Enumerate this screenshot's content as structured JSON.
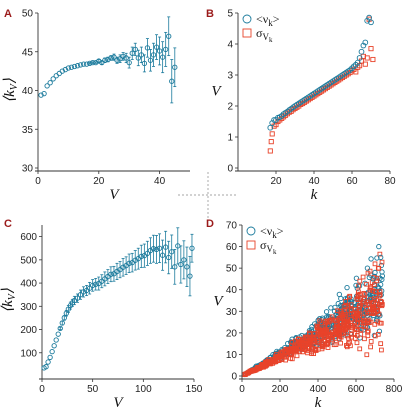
{
  "colors": {
    "blue": "#1a7a9c",
    "red": "#e8432a",
    "letter": "#9b1b1b",
    "grid_cross": "#888888"
  },
  "chart_data": [
    {
      "panel": "A",
      "type": "scatter",
      "error_bars": true,
      "xlabel": "V",
      "ylabel": "⟨k_V⟩",
      "xlim": [
        0,
        50
      ],
      "ylim": [
        30,
        50
      ],
      "xticks": [
        0,
        20,
        40
      ],
      "yticks": [
        30,
        35,
        40,
        45,
        50
      ],
      "series": [
        {
          "color": "blue",
          "marker": "circle",
          "points": [
            [
              1,
              39.4,
              0
            ],
            [
              2,
              39.6,
              0
            ],
            [
              3,
              40.6,
              0
            ],
            [
              4,
              41.0,
              0
            ],
            [
              5,
              41.5,
              0
            ],
            [
              6,
              41.9,
              0
            ],
            [
              7,
              42.2,
              0
            ],
            [
              8,
              42.5,
              0
            ],
            [
              9,
              42.7,
              0
            ],
            [
              10,
              42.9,
              0
            ],
            [
              11,
              43.0,
              0
            ],
            [
              12,
              43.1,
              0
            ],
            [
              13,
              43.2,
              0
            ],
            [
              14,
              43.3,
              0
            ],
            [
              15,
              43.4,
              0
            ],
            [
              16,
              43.4,
              0
            ],
            [
              17,
              43.5,
              0.1
            ],
            [
              18,
              43.6,
              0.1
            ],
            [
              19,
              43.6,
              0.1
            ],
            [
              20,
              43.8,
              0.2
            ],
            [
              21,
              43.6,
              0.2
            ],
            [
              22,
              43.9,
              0.3
            ],
            [
              23,
              44.0,
              0.3
            ],
            [
              24,
              44.2,
              0.3
            ],
            [
              25,
              44.3,
              0.4
            ],
            [
              26,
              43.9,
              0.4
            ],
            [
              27,
              44.1,
              0.5
            ],
            [
              28,
              44.4,
              0.5
            ],
            [
              29,
              44.2,
              0.6
            ],
            [
              30,
              43.6,
              0.7
            ],
            [
              31,
              44.8,
              0.8
            ],
            [
              32,
              45.3,
              0.8
            ],
            [
              33,
              44.2,
              1.0
            ],
            [
              34,
              44.6,
              1.0
            ],
            [
              35,
              43.5,
              1.1
            ],
            [
              36,
              45.5,
              1.2
            ],
            [
              37,
              43.9,
              1.4
            ],
            [
              38,
              44.6,
              1.5
            ],
            [
              39,
              45.6,
              1.6
            ],
            [
              40,
              45.1,
              1.8
            ],
            [
              41,
              44.3,
              2.0
            ],
            [
              42,
              45.3,
              2.2
            ],
            [
              43,
              47.0,
              2.5
            ],
            [
              44,
              41.2,
              2.8
            ],
            [
              45,
              43.0,
              2.5
            ]
          ]
        }
      ]
    },
    {
      "panel": "B",
      "type": "scatter",
      "xlabel": "k",
      "ylabel": "V",
      "xlim": [
        0,
        80
      ],
      "ylim": [
        0,
        5
      ],
      "xticks": [
        20,
        40,
        60,
        80
      ],
      "yticks": [
        0,
        1,
        2,
        3,
        4,
        5
      ],
      "legend": {
        "position": "top-left",
        "entries": [
          {
            "label": "<ν_k>",
            "color": "blue",
            "marker": "circle"
          },
          {
            "label": "σ_{V_k}",
            "color": "red",
            "marker": "square"
          }
        ]
      },
      "series": [
        {
          "label": "<ν_k>",
          "color": "blue",
          "marker": "circle",
          "points": [
            [
              17,
              1.3
            ],
            [
              18,
              1.45
            ],
            [
              19,
              1.55
            ],
            [
              20,
              1.55
            ],
            [
              21,
              1.62
            ],
            [
              22,
              1.64
            ],
            [
              23,
              1.68
            ],
            [
              24,
              1.74
            ],
            [
              25,
              1.78
            ],
            [
              26,
              1.82
            ],
            [
              27,
              1.87
            ],
            [
              28,
              1.91
            ],
            [
              29,
              1.96
            ],
            [
              30,
              2.0
            ],
            [
              31,
              2.04
            ],
            [
              32,
              2.08
            ],
            [
              33,
              2.12
            ],
            [
              34,
              2.16
            ],
            [
              35,
              2.2
            ],
            [
              36,
              2.24
            ],
            [
              37,
              2.28
            ],
            [
              38,
              2.32
            ],
            [
              39,
              2.36
            ],
            [
              40,
              2.4
            ],
            [
              41,
              2.44
            ],
            [
              42,
              2.48
            ],
            [
              43,
              2.52
            ],
            [
              44,
              2.56
            ],
            [
              45,
              2.6
            ],
            [
              46,
              2.64
            ],
            [
              47,
              2.68
            ],
            [
              48,
              2.72
            ],
            [
              49,
              2.76
            ],
            [
              50,
              2.8
            ],
            [
              51,
              2.84
            ],
            [
              52,
              2.88
            ],
            [
              53,
              2.92
            ],
            [
              54,
              2.96
            ],
            [
              55,
              3.0
            ],
            [
              56,
              3.04
            ],
            [
              57,
              3.08
            ],
            [
              58,
              3.12
            ],
            [
              59,
              3.16
            ],
            [
              60,
              3.22
            ],
            [
              61,
              3.28
            ],
            [
              62,
              3.33
            ],
            [
              63,
              3.4
            ],
            [
              64,
              3.55
            ],
            [
              65,
              3.75
            ],
            [
              66,
              3.95
            ],
            [
              67,
              4.05
            ],
            [
              68,
              4.75
            ],
            [
              69,
              4.85
            ],
            [
              70,
              4.7
            ]
          ]
        },
        {
          "label": "σ_{V_k}",
          "color": "red",
          "marker": "square",
          "points": [
            [
              17,
              0.55
            ],
            [
              17.5,
              0.85
            ],
            [
              18,
              1.1
            ],
            [
              19,
              1.35
            ],
            [
              20,
              1.4
            ],
            [
              21,
              1.5
            ],
            [
              22,
              1.55
            ],
            [
              23,
              1.6
            ],
            [
              24,
              1.65
            ],
            [
              25,
              1.7
            ],
            [
              26,
              1.75
            ],
            [
              27,
              1.8
            ],
            [
              28,
              1.83
            ],
            [
              29,
              1.88
            ],
            [
              30,
              1.92
            ],
            [
              31,
              1.96
            ],
            [
              32,
              2.0
            ],
            [
              33,
              2.05
            ],
            [
              34,
              2.08
            ],
            [
              35,
              2.12
            ],
            [
              36,
              2.16
            ],
            [
              37,
              2.2
            ],
            [
              38,
              2.24
            ],
            [
              39,
              2.28
            ],
            [
              40,
              2.32
            ],
            [
              41,
              2.36
            ],
            [
              42,
              2.4
            ],
            [
              43,
              2.44
            ],
            [
              44,
              2.48
            ],
            [
              45,
              2.52
            ],
            [
              46,
              2.56
            ],
            [
              47,
              2.6
            ],
            [
              48,
              2.64
            ],
            [
              49,
              2.68
            ],
            [
              50,
              2.72
            ],
            [
              51,
              2.76
            ],
            [
              52,
              2.8
            ],
            [
              53,
              2.84
            ],
            [
              54,
              2.88
            ],
            [
              55,
              2.92
            ],
            [
              56,
              2.96
            ],
            [
              57,
              3.0
            ],
            [
              58,
              3.04
            ],
            [
              59,
              3.08
            ],
            [
              60,
              3.14
            ],
            [
              61,
              3.18
            ],
            [
              62,
              3.1
            ],
            [
              63,
              3.25
            ],
            [
              64,
              3.3
            ],
            [
              65,
              3.45
            ],
            [
              66,
              3.6
            ],
            [
              67,
              3.35
            ],
            [
              68,
              3.55
            ],
            [
              69,
              4.8
            ],
            [
              70,
              3.85
            ],
            [
              71,
              3.5
            ]
          ]
        }
      ]
    },
    {
      "panel": "C",
      "type": "scatter",
      "error_bars": true,
      "xlabel": "V",
      "ylabel": "⟨k_V⟩",
      "xlim": [
        0,
        150
      ],
      "ylim": [
        0,
        650
      ],
      "xticks": [
        0,
        50,
        100,
        150
      ],
      "yticks": [
        100,
        200,
        300,
        400,
        500,
        600
      ],
      "series": [
        {
          "color": "blue",
          "marker": "circle",
          "points": [
            [
              2,
              35,
              0
            ],
            [
              4,
              40,
              0
            ],
            [
              6,
              60,
              0
            ],
            [
              8,
              80,
              0
            ],
            [
              10,
              105,
              0
            ],
            [
              12,
              130,
              0
            ],
            [
              14,
              155,
              0
            ],
            [
              16,
              180,
              0
            ],
            [
              18,
              205,
              5
            ],
            [
              20,
              228,
              8
            ],
            [
              22,
              250,
              10
            ],
            [
              24,
              270,
              12
            ],
            [
              26,
              288,
              15
            ],
            [
              28,
              303,
              15
            ],
            [
              30,
              315,
              15
            ],
            [
              32,
              325,
              18
            ],
            [
              35,
              335,
              18
            ],
            [
              38,
              350,
              20
            ],
            [
              41,
              362,
              22
            ],
            [
              44,
              368,
              22
            ],
            [
              47,
              378,
              25
            ],
            [
              50,
              390,
              25
            ],
            [
              53,
              395,
              25
            ],
            [
              56,
              398,
              28
            ],
            [
              59,
              408,
              28
            ],
            [
              62,
              418,
              30
            ],
            [
              65,
              428,
              30
            ],
            [
              68,
              438,
              32
            ],
            [
              71,
              440,
              32
            ],
            [
              74,
              450,
              35
            ],
            [
              77,
              458,
              35
            ],
            [
              80,
              468,
              38
            ],
            [
              83,
              475,
              38
            ],
            [
              86,
              485,
              40
            ],
            [
              89,
              488,
              40
            ],
            [
              92,
              498,
              42
            ],
            [
              95,
              505,
              45
            ],
            [
              98,
              515,
              48
            ],
            [
              101,
              518,
              50
            ],
            [
              104,
              528,
              52
            ],
            [
              107,
              540,
              55
            ],
            [
              110,
              548,
              58
            ],
            [
              113,
              545,
              60
            ],
            [
              116,
              550,
              62
            ],
            [
              119,
              520,
              65
            ],
            [
              122,
              555,
              68
            ],
            [
              125,
              510,
              70
            ],
            [
              128,
              535,
              72
            ],
            [
              131,
              470,
              75
            ],
            [
              134,
              560,
              78
            ],
            [
              137,
              480,
              80
            ],
            [
              140,
              500,
              82
            ],
            [
              143,
              470,
              85
            ],
            [
              146,
              430,
              85
            ],
            [
              148,
              550,
              60
            ]
          ]
        }
      ]
    },
    {
      "panel": "D",
      "type": "scatter",
      "xlabel": "k",
      "ylabel": "V",
      "xlim": [
        0,
        800
      ],
      "ylim": [
        0,
        70
      ],
      "xticks": [
        0,
        200,
        400,
        600,
        800
      ],
      "yticks": [
        0,
        10,
        20,
        30,
        40,
        50,
        60,
        70
      ],
      "legend": {
        "position": "top-left",
        "entries": [
          {
            "label": "<ν_k>",
            "color": "blue",
            "marker": "circle"
          },
          {
            "label": "σ_{V_k}",
            "color": "red",
            "marker": "square"
          }
        ]
      },
      "trend": {
        "blue_slope": 0.05,
        "red_slope": 0.045,
        "x_range": [
          10,
          740
        ],
        "points_per_series": 520
      },
      "outliers": {
        "blue": [
          [
            660,
            50
          ],
          [
            700,
            48
          ],
          [
            720,
            60
          ],
          [
            730,
            55
          ],
          [
            690,
            45
          ],
          [
            600,
            42
          ]
        ],
        "red": [
          [
            700,
            52
          ],
          [
            720,
            50
          ],
          [
            620,
            44
          ],
          [
            680,
            16
          ],
          [
            730,
            15
          ],
          [
            560,
            15
          ]
        ]
      }
    }
  ]
}
